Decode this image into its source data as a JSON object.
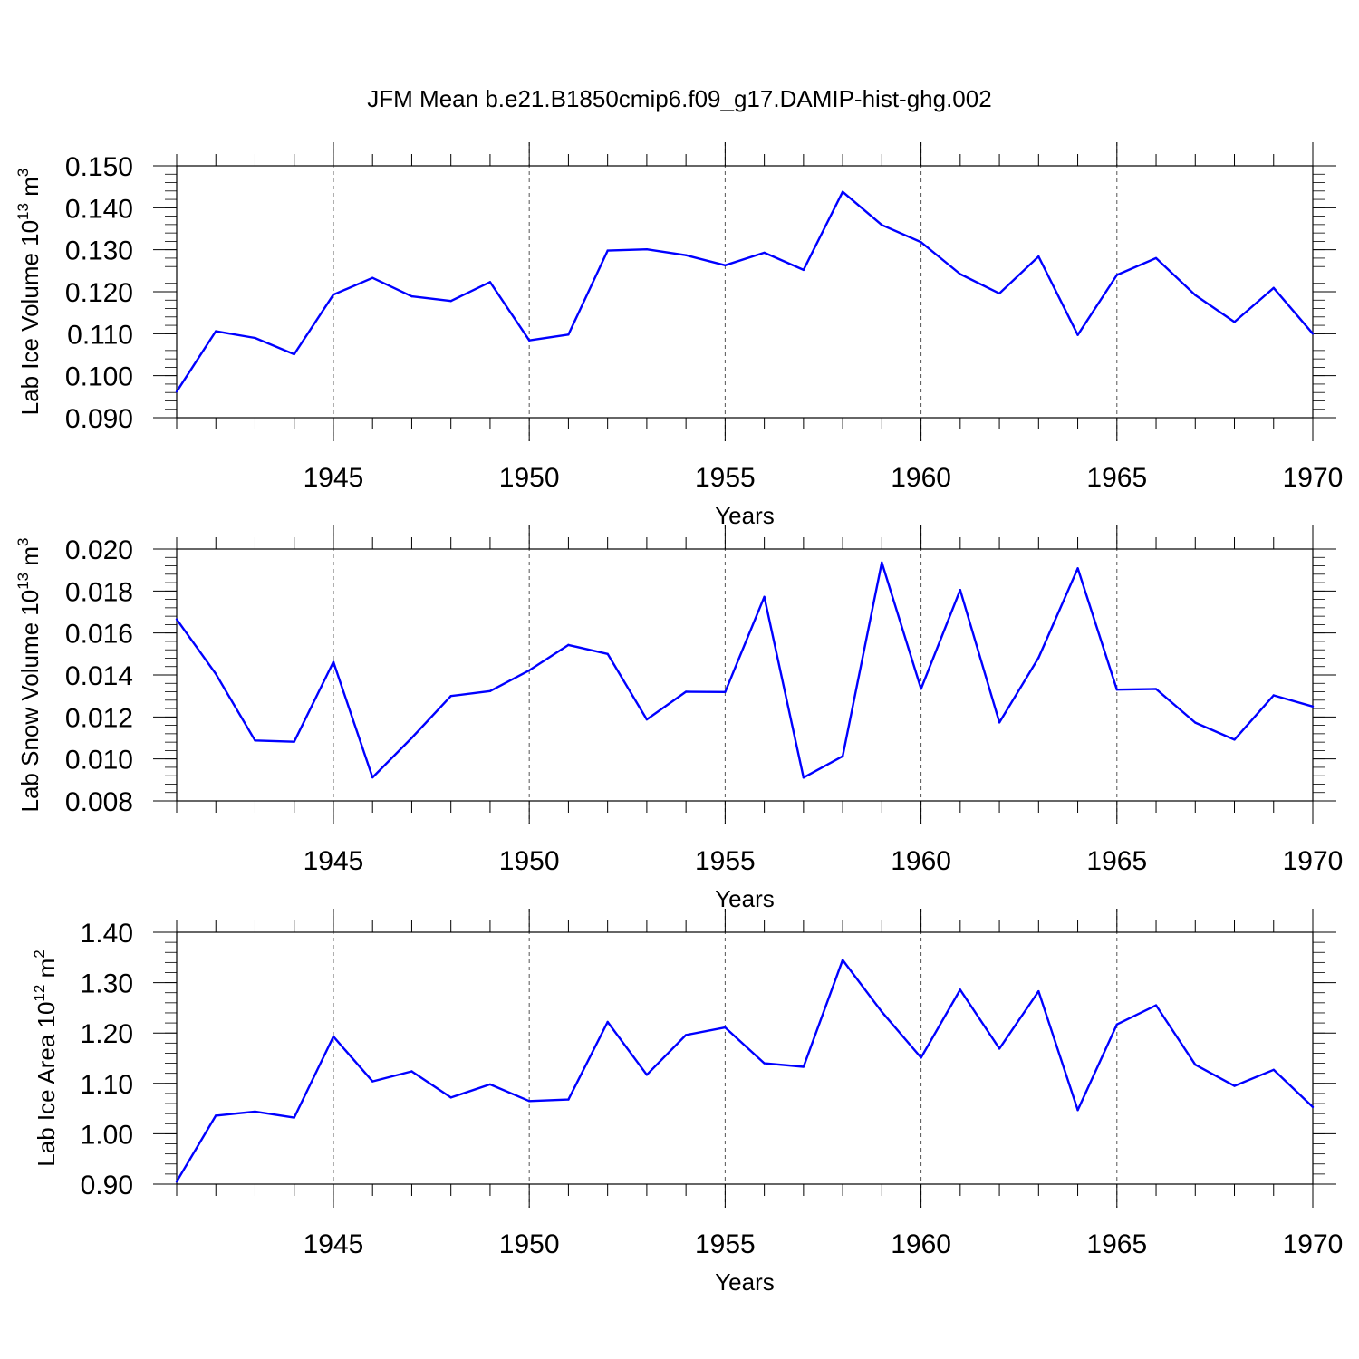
{
  "title": "JFM Mean b.e21.B1850cmip6.f09_g17.DAMIP-hist-ghg.002",
  "chart_data": [
    {
      "type": "line",
      "title": "JFM Mean b.e21.B1850cmip6.f09_g17.DAMIP-hist-ghg.002",
      "xlabel": "Years",
      "ylabel_main": "Lab Ice Volume 10",
      "ylabel_exp": "13",
      "ylabel_unit": " m",
      "ylabel_unit_exp": "3",
      "xlim": [
        1941,
        1970
      ],
      "ylim": [
        0.09,
        0.15
      ],
      "grid": "vertical dashed at major x ticks",
      "x_ticks": [
        1945,
        1950,
        1955,
        1960,
        1965,
        1970
      ],
      "x_tick_labels": [
        "1945",
        "1950",
        "1955",
        "1960",
        "1965",
        "1970"
      ],
      "y_ticks": [
        0.09,
        0.1,
        0.11,
        0.12,
        0.13,
        0.14,
        0.15
      ],
      "y_tick_labels": [
        "0.090",
        "0.100",
        "0.110",
        "0.120",
        "0.130",
        "0.140",
        "0.150"
      ],
      "y_minor_step": 0.002,
      "line_color": "#0000ff",
      "series": [
        {
          "name": "Lab Ice Volume",
          "x": [
            1941,
            1942,
            1943,
            1944,
            1945,
            1946,
            1947,
            1948,
            1949,
            1950,
            1951,
            1952,
            1953,
            1954,
            1955,
            1956,
            1957,
            1958,
            1959,
            1960,
            1961,
            1962,
            1963,
            1964,
            1965,
            1966,
            1967,
            1968,
            1969,
            1970
          ],
          "values": [
            0.0962,
            0.1106,
            0.109,
            0.1051,
            0.1193,
            0.1233,
            0.1189,
            0.1178,
            0.1223,
            0.1084,
            0.1098,
            0.1298,
            0.1301,
            0.1287,
            0.1263,
            0.1293,
            0.1252,
            0.1438,
            0.1359,
            0.1318,
            0.1242,
            0.1196,
            0.1284,
            0.1097,
            0.124,
            0.128,
            0.1192,
            0.1128,
            0.1209,
            0.11
          ]
        }
      ]
    },
    {
      "type": "line",
      "title": "",
      "xlabel": "Years",
      "ylabel_main": "Lab Snow Volume 10",
      "ylabel_exp": "13",
      "ylabel_unit": " m",
      "ylabel_unit_exp": "3",
      "xlim": [
        1941,
        1970
      ],
      "ylim": [
        0.008,
        0.02
      ],
      "grid": "vertical dashed at major x ticks",
      "x_ticks": [
        1945,
        1950,
        1955,
        1960,
        1965,
        1970
      ],
      "x_tick_labels": [
        "1945",
        "1950",
        "1955",
        "1960",
        "1965",
        "1970"
      ],
      "y_ticks": [
        0.008,
        0.01,
        0.012,
        0.014,
        0.016,
        0.018,
        0.02
      ],
      "y_tick_labels": [
        "0.008",
        "0.010",
        "0.012",
        "0.014",
        "0.016",
        "0.018",
        "0.020"
      ],
      "y_minor_step": 0.0004,
      "line_color": "#0000ff",
      "series": [
        {
          "name": "Lab Snow Volume",
          "x": [
            1941,
            1942,
            1943,
            1944,
            1945,
            1946,
            1947,
            1948,
            1949,
            1950,
            1951,
            1952,
            1953,
            1954,
            1955,
            1956,
            1957,
            1958,
            1959,
            1960,
            1961,
            1962,
            1963,
            1964,
            1965,
            1966,
            1967,
            1968,
            1969,
            1970
          ],
          "values": [
            0.01665,
            0.01405,
            0.01088,
            0.01082,
            0.01462,
            0.00912,
            0.011,
            0.013,
            0.01323,
            0.01422,
            0.01543,
            0.015,
            0.01188,
            0.0132,
            0.01319,
            0.01772,
            0.00911,
            0.01013,
            0.01936,
            0.01334,
            0.01805,
            0.01174,
            0.01482,
            0.01908,
            0.0133,
            0.01333,
            0.01173,
            0.01092,
            0.01303,
            0.0125
          ]
        }
      ]
    },
    {
      "type": "line",
      "title": "",
      "xlabel": "Years",
      "ylabel_main": "Lab Ice Area 10",
      "ylabel_exp": "12",
      "ylabel_unit": " m",
      "ylabel_unit_exp": "2",
      "xlim": [
        1941,
        1970
      ],
      "ylim": [
        0.9,
        1.4
      ],
      "grid": "vertical dashed at major x ticks",
      "x_ticks": [
        1945,
        1950,
        1955,
        1960,
        1965,
        1970
      ],
      "x_tick_labels": [
        "1945",
        "1950",
        "1955",
        "1960",
        "1965",
        "1970"
      ],
      "y_ticks": [
        0.9,
        1.0,
        1.1,
        1.2,
        1.3,
        1.4
      ],
      "y_tick_labels": [
        "0.90",
        "1.00",
        "1.10",
        "1.20",
        "1.30",
        "1.40"
      ],
      "y_minor_step": 0.02,
      "line_color": "#0000ff",
      "series": [
        {
          "name": "Lab Ice Area",
          "x": [
            1941,
            1942,
            1943,
            1944,
            1945,
            1946,
            1947,
            1948,
            1949,
            1950,
            1951,
            1952,
            1953,
            1954,
            1955,
            1956,
            1957,
            1958,
            1959,
            1960,
            1961,
            1962,
            1963,
            1964,
            1965,
            1966,
            1967,
            1968,
            1969,
            1970
          ],
          "values": [
            0.905,
            1.036,
            1.044,
            1.032,
            1.193,
            1.104,
            1.124,
            1.072,
            1.098,
            1.065,
            1.068,
            1.222,
            1.117,
            1.196,
            1.211,
            1.14,
            1.133,
            1.345,
            1.242,
            1.151,
            1.286,
            1.169,
            1.283,
            1.047,
            1.217,
            1.255,
            1.137,
            1.095,
            1.127,
            1.053
          ]
        }
      ]
    }
  ]
}
